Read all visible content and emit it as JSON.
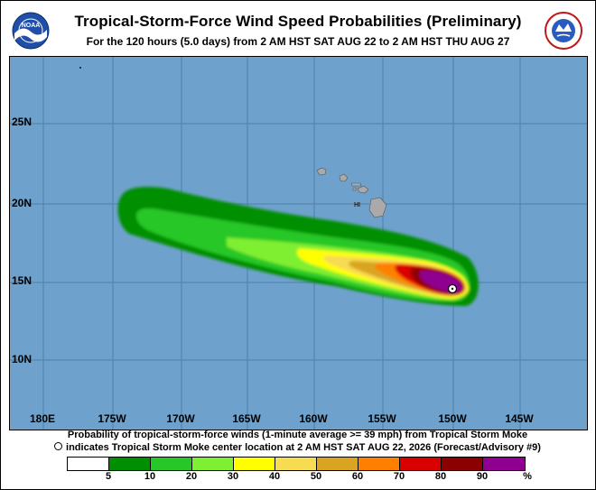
{
  "header": {
    "title": "Tropical-Storm-Force Wind Speed Probabilities (Preliminary)",
    "subtitle": "For the 120 hours (5.0 days) from 2 AM HST SAT AUG 22 to 2 AM HST THU AUG 27"
  },
  "logos": {
    "left": {
      "icon": "noaa-logo",
      "text": "NOAA"
    },
    "right": {
      "icon": "national-weather-service-logo",
      "text": "NATIONAL WEATHER SERVICE"
    }
  },
  "map": {
    "lat_labels": [
      "25N",
      "20N",
      "15N",
      "10N"
    ],
    "lon_labels": [
      "180E",
      "175W",
      "170W",
      "165W",
      "160W",
      "155W",
      "150W",
      "145W"
    ],
    "island_label": "HI",
    "colors": {
      "ocean": "#6ea2cc",
      "land": "#aaaaaa",
      "grid": "#4f7fb0"
    }
  },
  "footer": {
    "line1": "Probability of tropical-storm-force winds (1-minute average >= 39 mph) from Tropical Storm Moke",
    "line2": "indicates Tropical Storm Moke center location at 2 AM HST SAT AUG 22, 2026 (Forecast/Advisory #9)"
  },
  "legend": {
    "labels": [
      "5",
      "10",
      "20",
      "30",
      "40",
      "50",
      "60",
      "70",
      "80",
      "90",
      "%"
    ],
    "colors": [
      "#ffffff",
      "#008f00",
      "#26c726",
      "#7fef33",
      "#ffff00",
      "#f7dc52",
      "#d9a421",
      "#ff8000",
      "#d90000",
      "#8b0000",
      "#8f0090"
    ]
  }
}
